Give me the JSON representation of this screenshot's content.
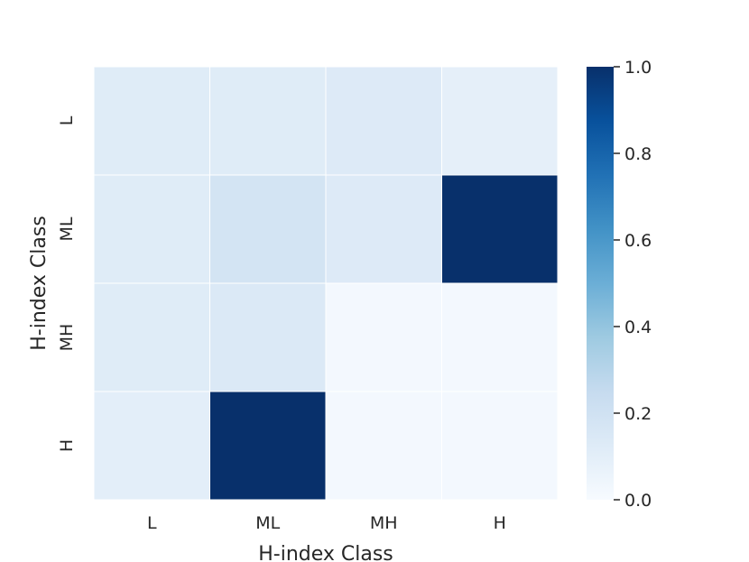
{
  "chart_data": {
    "type": "heatmap",
    "xlabel": "H-index Class",
    "ylabel": "H-index Class",
    "x_categories": [
      "L",
      "ML",
      "MH",
      "H"
    ],
    "y_categories": [
      "L",
      "ML",
      "MH",
      "H"
    ],
    "values": [
      [
        0.12,
        0.12,
        0.13,
        0.09
      ],
      [
        0.12,
        0.18,
        0.13,
        1.0
      ],
      [
        0.12,
        0.14,
        0.02,
        0.02
      ],
      [
        0.1,
        1.0,
        0.02,
        0.02
      ]
    ],
    "colorbar": {
      "range": [
        0.0,
        1.0
      ],
      "ticks": [
        "0.0",
        "0.2",
        "0.4",
        "0.6",
        "0.8",
        "1.0"
      ],
      "colormap": "Blues",
      "color_low": "#f7fbff",
      "color_high": "#08306b"
    },
    "grid": "white cell borders",
    "legend": "colorbar right"
  }
}
